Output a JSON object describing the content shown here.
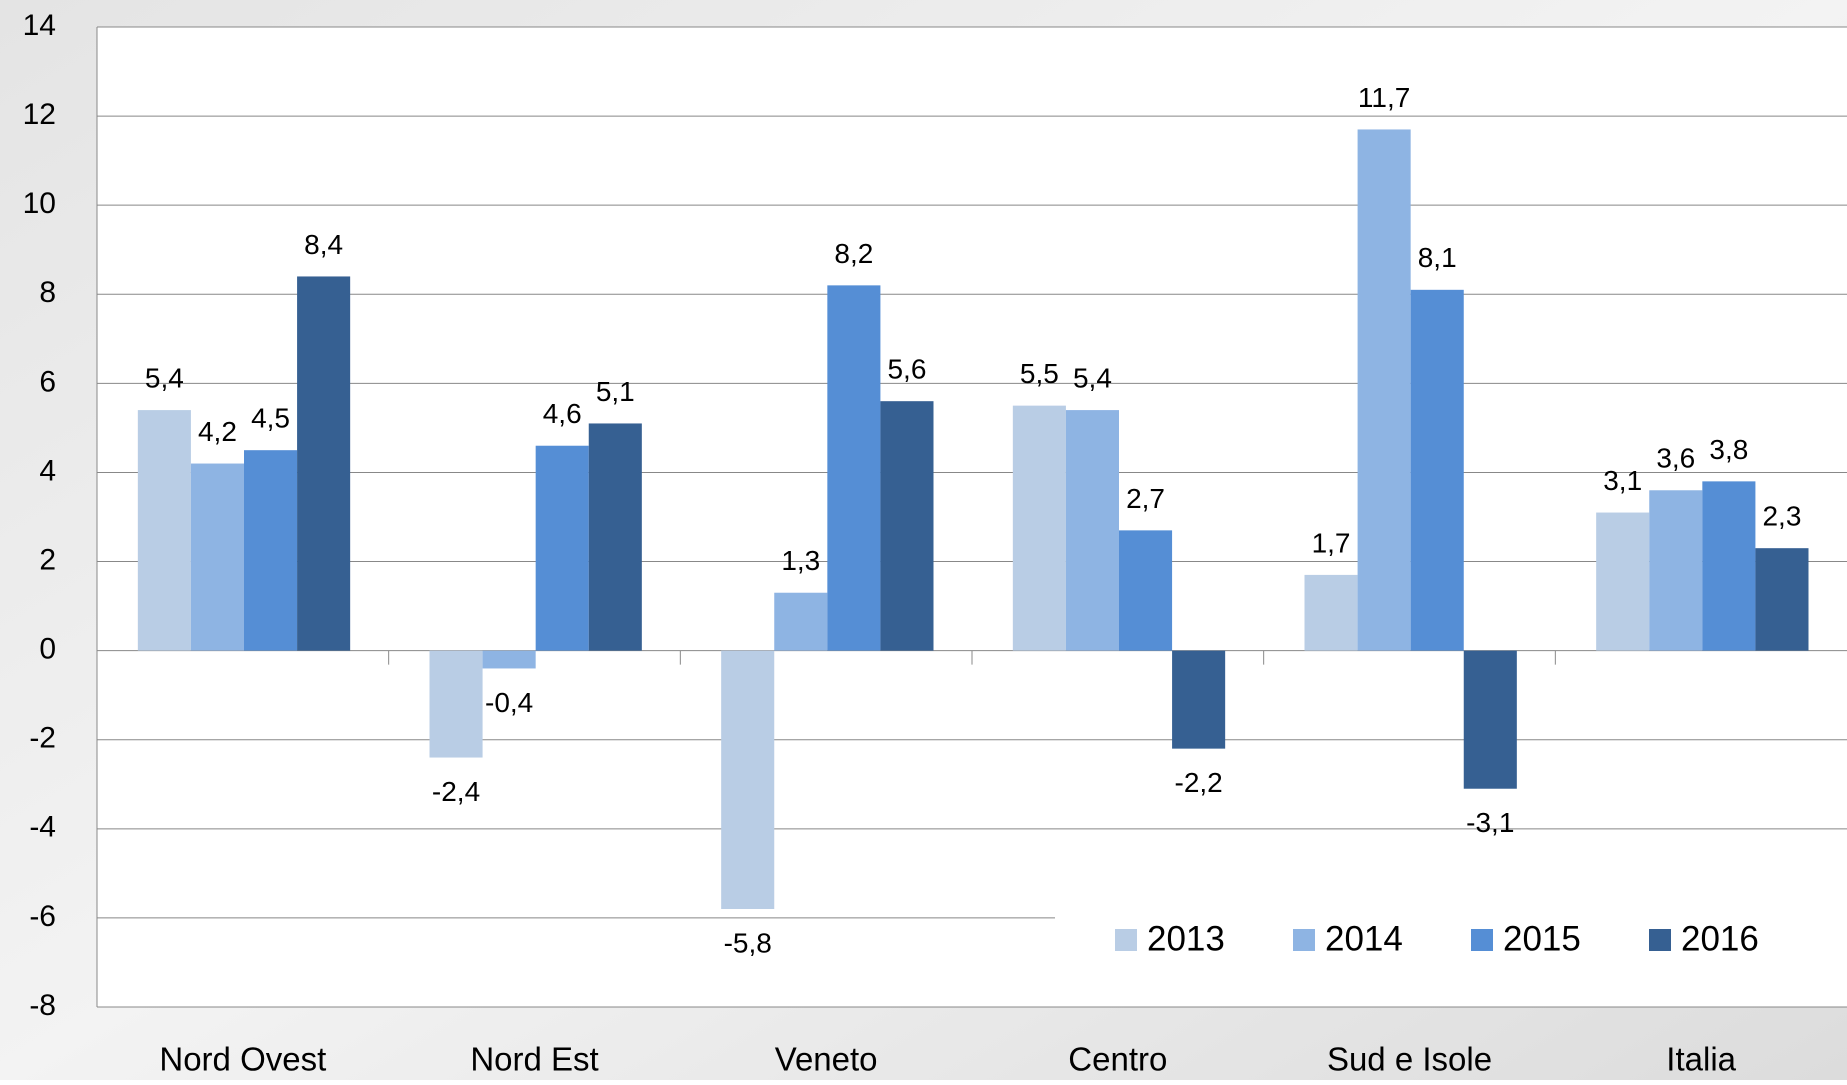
{
  "chart_data": {
    "type": "bar",
    "categories": [
      "Nord Ovest",
      "Nord Est",
      "Veneto",
      "Centro",
      "Sud e Isole",
      "Italia"
    ],
    "series": [
      {
        "name": "2013",
        "color": "#b9cde5",
        "values": [
          5.4,
          -2.4,
          -5.8,
          5.5,
          1.7,
          3.1
        ],
        "value_labels": [
          "5,4",
          "-2,4",
          "-5,8",
          "5,5",
          "1,7",
          "3,1"
        ]
      },
      {
        "name": "2014",
        "color": "#8eb4e3",
        "values": [
          4.2,
          -0.4,
          1.3,
          5.4,
          11.7,
          3.6
        ],
        "value_labels": [
          "4,2",
          "-0,4",
          "1,3",
          "5,4",
          "11,7",
          "3,6"
        ]
      },
      {
        "name": "2015",
        "color": "#558ed5",
        "values": [
          4.5,
          4.6,
          8.2,
          2.7,
          8.1,
          3.8
        ],
        "value_labels": [
          "4,5",
          "4,6",
          "8,2",
          "2,7",
          "8,1",
          "3,8"
        ]
      },
      {
        "name": "2016",
        "color": "#366092",
        "values": [
          8.4,
          5.1,
          5.6,
          -2.2,
          -3.1,
          2.3
        ],
        "value_labels": [
          "8,4",
          "5,1",
          "5,6",
          "-2,2",
          "-3,1",
          "2,3"
        ]
      }
    ],
    "ylim": [
      -8,
      14
    ],
    "yticks": [
      -8,
      -6,
      -4,
      -2,
      0,
      2,
      4,
      6,
      8,
      10,
      12,
      14
    ],
    "grid": true,
    "legend": "lower right"
  }
}
